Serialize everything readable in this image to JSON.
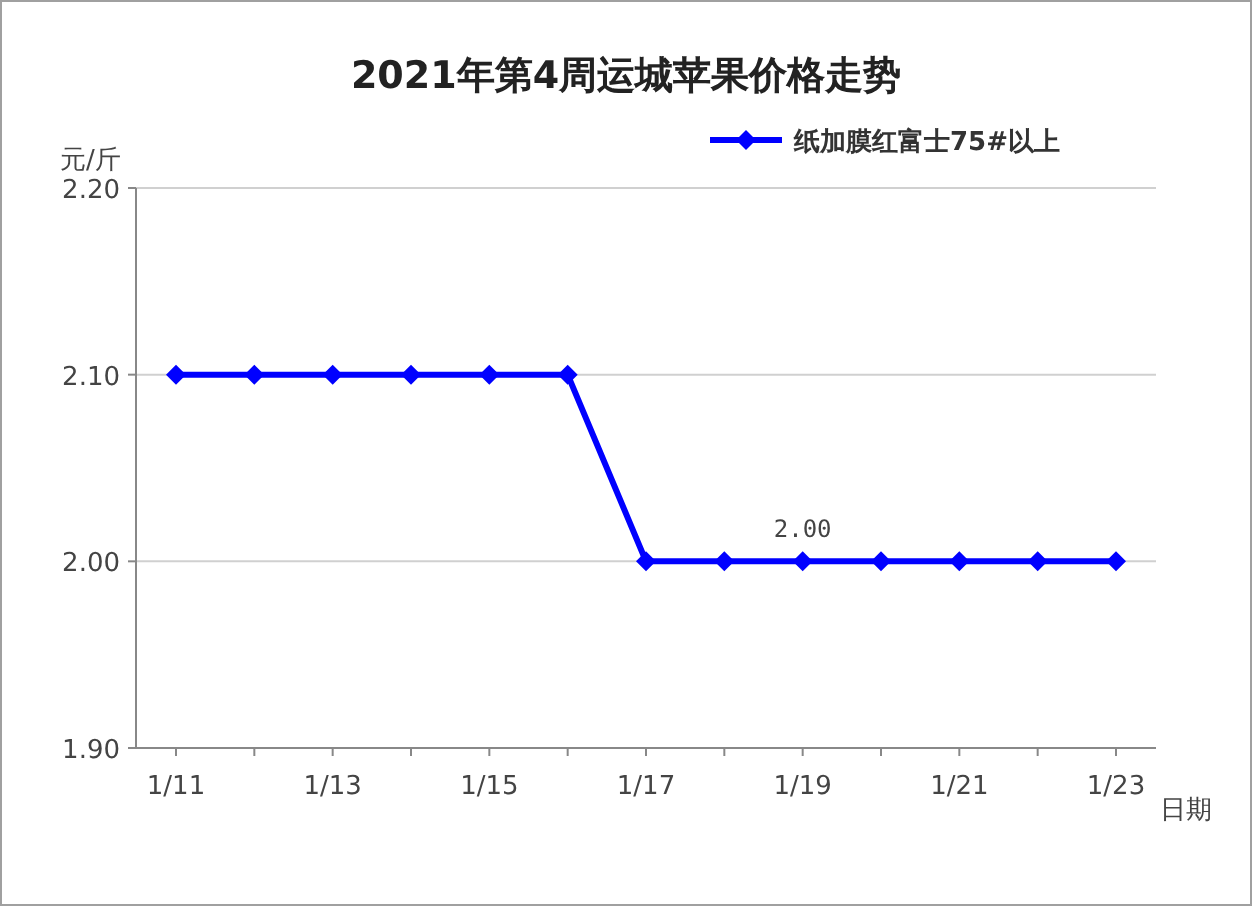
{
  "chart_data": {
    "type": "line",
    "title": "2021年第4周运城苹果价格走势",
    "ylabel": "元/斤",
    "xlabel": "日期",
    "categories": [
      "1/11",
      null,
      "1/13",
      null,
      "1/15",
      null,
      "1/17",
      null,
      "1/19",
      null,
      "1/21",
      null,
      "1/23"
    ],
    "series": [
      {
        "name": "纸加膜红富士75#以上",
        "color": "#0000ff",
        "values": [
          2.1,
          2.1,
          2.1,
          2.1,
          2.1,
          2.1,
          2.0,
          2.0,
          2.0,
          2.0,
          2.0,
          2.0,
          2.0
        ],
        "value_labels": [
          null,
          null,
          null,
          null,
          null,
          null,
          null,
          null,
          "2.00",
          null,
          null,
          null,
          null
        ]
      }
    ],
    "ylim": [
      1.9,
      2.2
    ],
    "yticks": [
      {
        "value": 1.9,
        "label": "1.90"
      },
      {
        "value": 2.0,
        "label": "2.00"
      },
      {
        "value": 2.1,
        "label": "2.10"
      },
      {
        "value": 2.2,
        "label": "2.20"
      }
    ],
    "grid": "y",
    "legend": "top right",
    "marker": "diamond",
    "line_style": "solid"
  }
}
